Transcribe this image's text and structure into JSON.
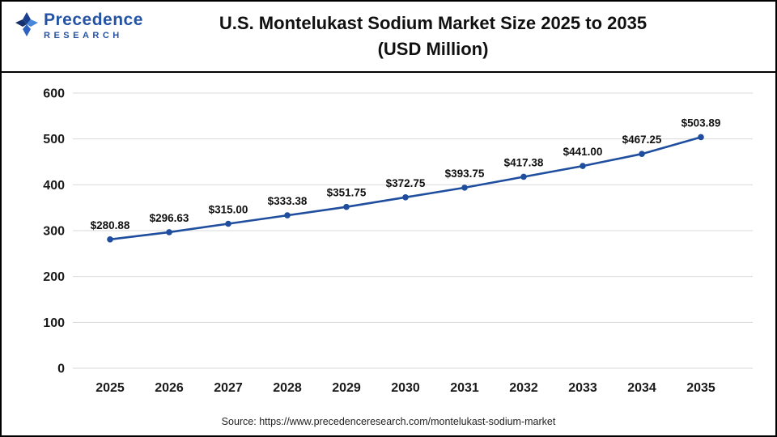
{
  "header": {
    "logo": {
      "name": "Precedence",
      "subname": "RESEARCH"
    },
    "title_line1": "U.S. Montelukast Sodium Market Size 2025 to 2035",
    "title_line2": "(USD Million)"
  },
  "footer": {
    "source": "Source: https://www.precedenceresearch.com/montelukast-sodium-market"
  },
  "chart_data": {
    "type": "line",
    "title": "U.S. Montelukast Sodium Market Size 2025 to 2035 (USD Million)",
    "categories": [
      "2025",
      "2026",
      "2027",
      "2028",
      "2029",
      "2030",
      "2031",
      "2032",
      "2033",
      "2034",
      "2035"
    ],
    "series": [
      {
        "name": "U.S. Montelukast Sodium Market Size (USD Million)",
        "values": [
          280.88,
          296.63,
          315.0,
          333.38,
          351.75,
          372.75,
          393.75,
          417.38,
          441.0,
          467.25,
          503.89
        ]
      }
    ],
    "value_label_prefix": "$",
    "ylim": [
      0,
      600
    ],
    "ytick_step": 100,
    "grid": true,
    "legend": "none",
    "line_color": "#1f4e9e",
    "marker_color": "#1f4e9e",
    "grid_color": "#d9d9d9",
    "axis_label_color": "#1a1a1a",
    "value_label_color": "#111111"
  }
}
